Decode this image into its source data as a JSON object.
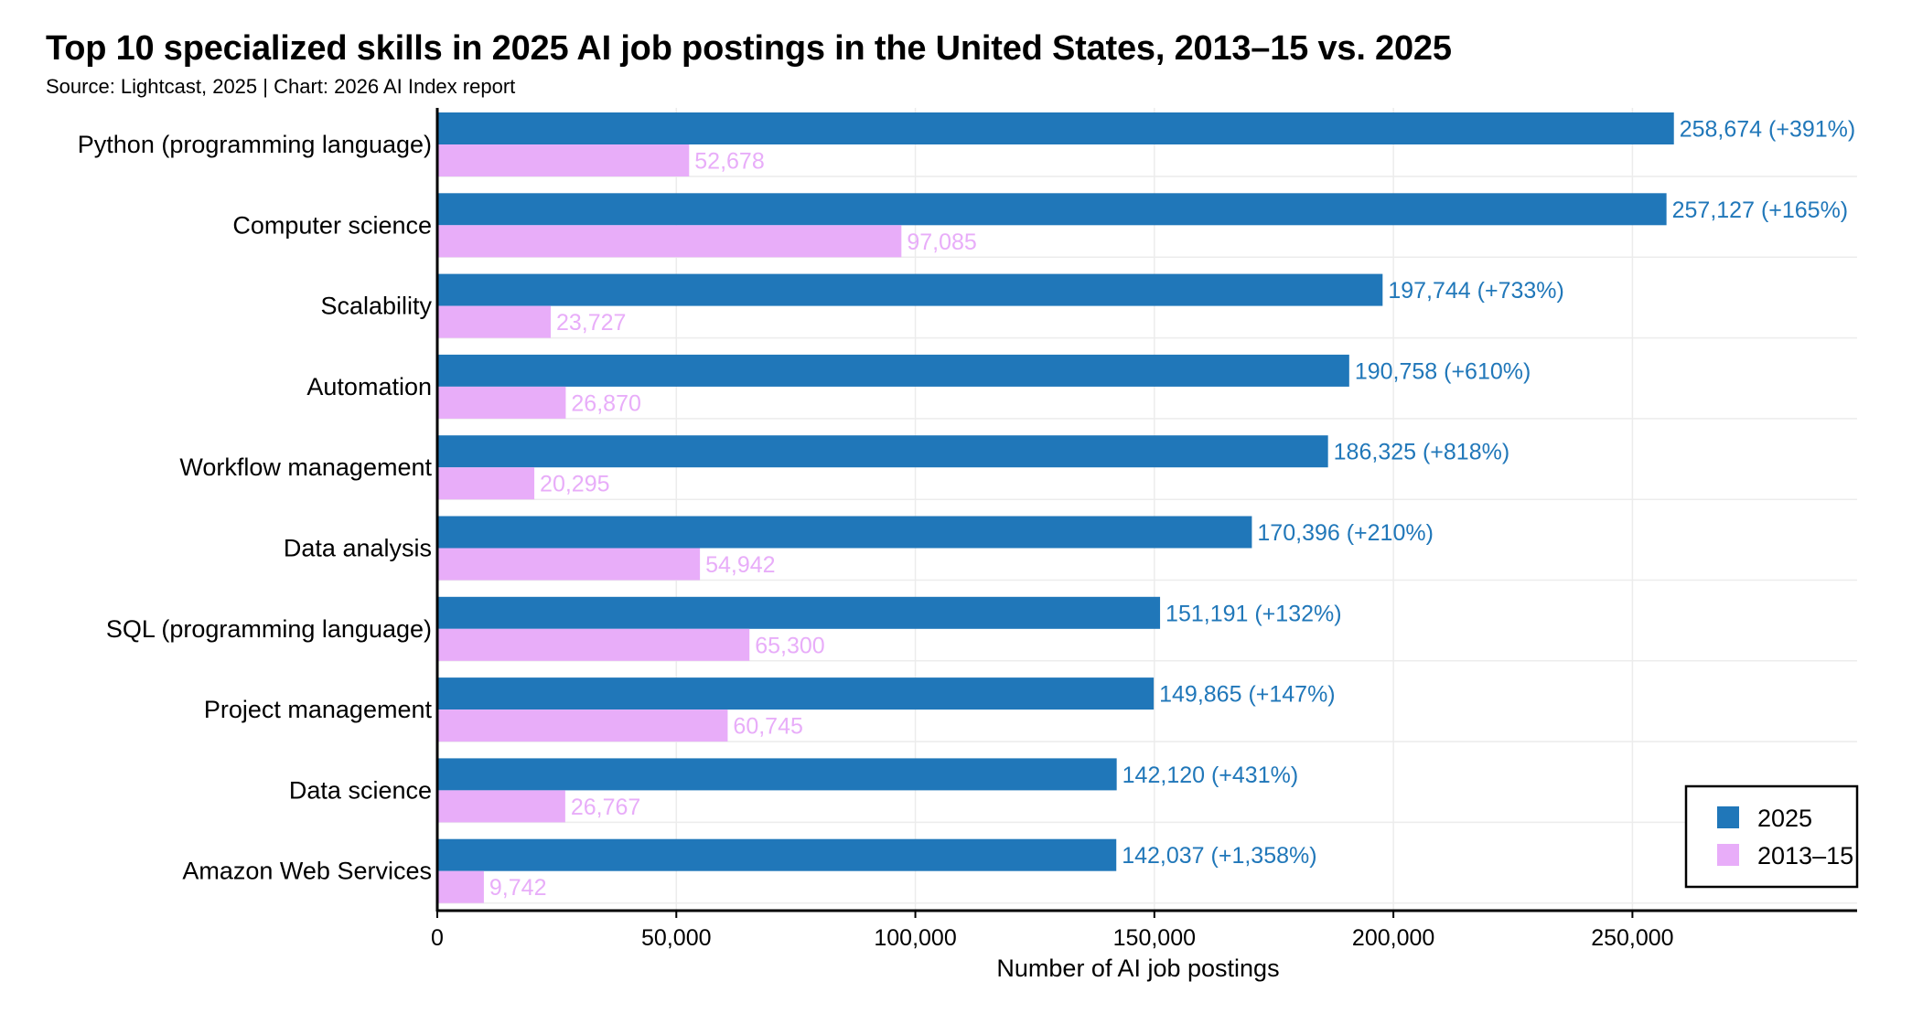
{
  "title": "Top 10 specialized skills in 2025 AI job postings in the United States, 2013–15 vs. 2025",
  "subtitle": "Source: Lightcast, 2025 | Chart: 2026 AI Index report",
  "colors": {
    "series_2025": "#2077b9",
    "series_2013_15": "#e8adf9",
    "grid": "#ececec",
    "axis": "#000000"
  },
  "chart_data": {
    "type": "bar",
    "orientation": "horizontal",
    "categories": [
      "Python (programming language)",
      "Computer science",
      "Scalability",
      "Automation",
      "Workflow management",
      "Data analysis",
      "SQL (programming language)",
      "Project management",
      "Data science",
      "Amazon Web Services"
    ],
    "series": [
      {
        "name": "2025",
        "values": [
          258674,
          257127,
          197744,
          190758,
          186325,
          170396,
          151191,
          149865,
          142120,
          142037
        ],
        "labels": [
          "258,674 (+391%)",
          "257,127 (+165%)",
          "197,744 (+733%)",
          "190,758 (+610%)",
          "186,325 (+818%)",
          "170,396 (+210%)",
          "151,191 (+132%)",
          "149,865 (+147%)",
          "142,120 (+431%)",
          "142,037 (+1,358%)"
        ]
      },
      {
        "name": "2013–15",
        "values": [
          52678,
          97085,
          23727,
          26870,
          20295,
          54942,
          65300,
          60745,
          26767,
          9742
        ],
        "labels": [
          "52,678",
          "97,085",
          "23,727",
          "26,870",
          "20,295",
          "54,942",
          "65,300",
          "60,745",
          "26,767",
          "9,742"
        ]
      }
    ],
    "xlabel": "Number of AI job postings",
    "ylabel": "",
    "xlim": [
      0,
      297000
    ],
    "xticks": [
      0,
      50000,
      100000,
      150000,
      200000,
      250000
    ],
    "xtick_labels": [
      "0",
      "50,000",
      "100,000",
      "150,000",
      "200,000",
      "250,000"
    ],
    "grid": true,
    "legend_position": "bottom-right"
  }
}
